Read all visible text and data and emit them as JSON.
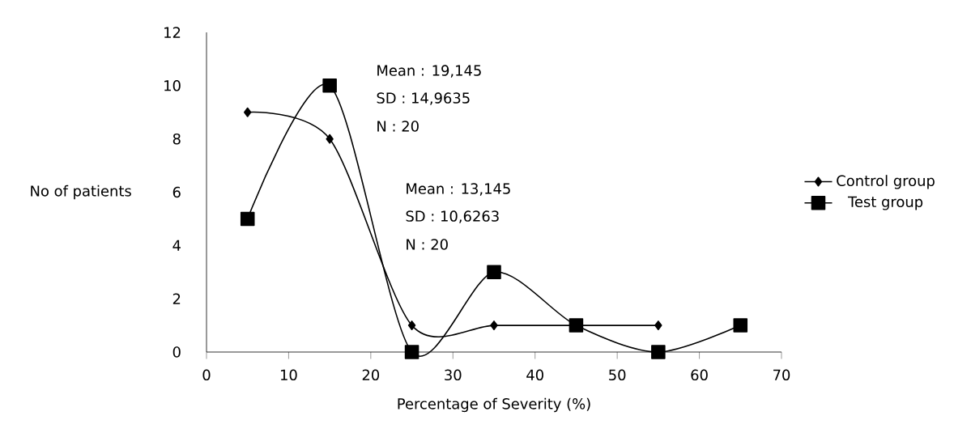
{
  "chart_data": {
    "type": "line",
    "xlabel": "Percentage of Severity (%)",
    "ylabel": "No of patients",
    "series": [
      {
        "name": "Control group",
        "color": "#000000",
        "marker": "diamond",
        "x": [
          5,
          15,
          25,
          35,
          45,
          55
        ],
        "values": [
          9,
          8,
          1,
          1,
          1,
          1
        ]
      },
      {
        "name": "Test group",
        "color": "#000000",
        "marker": "square",
        "x": [
          5,
          15,
          25,
          35,
          45,
          55,
          65
        ],
        "values": [
          5,
          10,
          0,
          3,
          1,
          0,
          1
        ]
      }
    ],
    "xlim": [
      0,
      70
    ],
    "xticks": [
      0,
      10,
      20,
      30,
      40,
      50,
      60,
      70
    ],
    "ylim": [
      0,
      12
    ],
    "yticks": [
      0,
      2,
      4,
      6,
      8,
      10,
      12
    ],
    "annotations": [
      "Mean : 19,145",
      "SD : 14,9635",
      "N : 20",
      "Mean : 13,145",
      "SD : 10,6263",
      "N : 20"
    ],
    "grid": false,
    "legend": "right",
    "line_style": "solid"
  }
}
